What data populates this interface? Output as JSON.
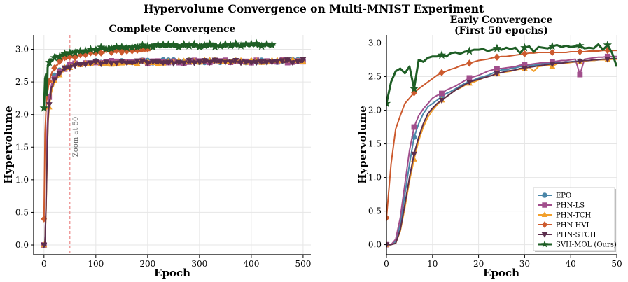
{
  "suptitle": "Hypervolume Convergence on Multi-MNIST Experiment",
  "colors": {
    "EPO": "#4a86a8",
    "PHN-LS": "#a14e8c",
    "PHN-TCH": "#f2a02d",
    "PHN-HVI": "#cc5a2e",
    "PHN-STCH": "#5c2f4e",
    "SVH-MOL (Ours)": "#1e5e25"
  },
  "markers": {
    "EPO": "circle",
    "PHN-LS": "square",
    "PHN-TCH": "triangle-up",
    "PHN-HVI": "diamond",
    "PHN-STCH": "triangle-down",
    "SVH-MOL (Ours)": "star"
  },
  "chart_data": [
    {
      "type": "line",
      "title": "Complete Convergence",
      "xlabel": "Epoch",
      "ylabel": "Hypervolume",
      "xlim": [
        -20,
        515
      ],
      "ylim": [
        -0.15,
        3.22
      ],
      "xticks": [
        0,
        100,
        200,
        300,
        400,
        500
      ],
      "yticks": [
        0.0,
        0.5,
        1.0,
        1.5,
        2.0,
        2.5,
        3.0
      ],
      "grid": true,
      "annotation": {
        "type": "vline",
        "x": 50,
        "label": "Zoom at 50",
        "color": "#e87070",
        "style": "dashed"
      },
      "series": [
        {
          "name": "EPO",
          "epochs": 500,
          "final": 2.82,
          "curve": [
            [
              0,
              0.0
            ],
            [
              2,
              0.05
            ],
            [
              4,
              0.6
            ],
            [
              6,
              1.6
            ],
            [
              8,
              2.05
            ],
            [
              10,
              2.25
            ],
            [
              14,
              2.45
            ],
            [
              20,
              2.58
            ],
            [
              30,
              2.66
            ],
            [
              40,
              2.72
            ],
            [
              60,
              2.77
            ],
            [
              100,
              2.8
            ],
            [
              200,
              2.81
            ],
            [
              300,
              2.82
            ],
            [
              500,
              2.82
            ]
          ]
        },
        {
          "name": "PHN-LS",
          "epochs": 500,
          "final": 2.81,
          "curve": [
            [
              0,
              0.0
            ],
            [
              2,
              0.05
            ],
            [
              4,
              0.7
            ],
            [
              6,
              1.75
            ],
            [
              8,
              2.1
            ],
            [
              10,
              2.25
            ],
            [
              14,
              2.45
            ],
            [
              20,
              2.56
            ],
            [
              30,
              2.65
            ],
            [
              40,
              2.72
            ],
            [
              60,
              2.77
            ],
            [
              100,
              2.8
            ],
            [
              300,
              2.81
            ],
            [
              500,
              2.81
            ]
          ]
        },
        {
          "name": "PHN-TCH",
          "epochs": 500,
          "final": 2.82,
          "curve": [
            [
              0,
              0.0
            ],
            [
              2,
              0.05
            ],
            [
              4,
              0.55
            ],
            [
              6,
              1.3
            ],
            [
              8,
              1.9
            ],
            [
              10,
              2.1
            ],
            [
              14,
              2.35
            ],
            [
              20,
              2.5
            ],
            [
              30,
              2.62
            ],
            [
              40,
              2.7
            ],
            [
              60,
              2.76
            ],
            [
              100,
              2.79
            ],
            [
              300,
              2.81
            ],
            [
              500,
              2.82
            ]
          ]
        },
        {
          "name": "PHN-HVI",
          "epochs": 205,
          "final": 2.99,
          "curve": [
            [
              0,
              0.4
            ],
            [
              2,
              1.7
            ],
            [
              4,
              2.1
            ],
            [
              6,
              2.3
            ],
            [
              10,
              2.5
            ],
            [
              14,
              2.62
            ],
            [
              20,
              2.72
            ],
            [
              30,
              2.8
            ],
            [
              40,
              2.86
            ],
            [
              50,
              2.88
            ],
            [
              80,
              2.94
            ],
            [
              120,
              2.97
            ],
            [
              205,
              2.99
            ]
          ]
        },
        {
          "name": "PHN-STCH",
          "epochs": 500,
          "final": 2.82,
          "curve": [
            [
              0,
              0.0
            ],
            [
              2,
              0.05
            ],
            [
              4,
              0.6
            ],
            [
              6,
              1.35
            ],
            [
              8,
              1.95
            ],
            [
              10,
              2.15
            ],
            [
              14,
              2.38
            ],
            [
              20,
              2.52
            ],
            [
              30,
              2.63
            ],
            [
              40,
              2.71
            ],
            [
              60,
              2.77
            ],
            [
              100,
              2.8
            ],
            [
              300,
              2.81
            ],
            [
              500,
              2.82
            ]
          ]
        },
        {
          "name": "SVH-MOL (Ours)",
          "epochs": 445,
          "final": 3.07,
          "curve": [
            [
              0,
              2.1
            ],
            [
              2,
              2.55
            ],
            [
              4,
              2.62
            ],
            [
              6,
              2.3
            ],
            [
              7,
              2.72
            ],
            [
              10,
              2.8
            ],
            [
              15,
              2.83
            ],
            [
              20,
              2.88
            ],
            [
              30,
              2.9
            ],
            [
              40,
              2.93
            ],
            [
              50,
              2.95
            ],
            [
              80,
              2.98
            ],
            [
              120,
              3.02
            ],
            [
              200,
              3.05
            ],
            [
              300,
              3.06
            ],
            [
              445,
              3.07
            ]
          ]
        }
      ]
    },
    {
      "type": "line",
      "title": "Early Convergence",
      "subtitle": "(First 50 epochs)",
      "xlabel": "Epoch",
      "ylabel": "Hypervolume",
      "xlim": [
        0,
        50
      ],
      "ylim": [
        -0.15,
        3.12
      ],
      "xticks": [
        0,
        10,
        20,
        30,
        40,
        50
      ],
      "yticks": [
        0.0,
        0.5,
        1.0,
        1.5,
        2.0,
        2.5,
        3.0
      ],
      "grid": true,
      "legend": "lower-right",
      "series": [
        {
          "name": "EPO",
          "x": [
            0,
            1,
            2,
            3,
            4,
            5,
            6,
            7,
            8,
            9,
            10,
            11,
            12,
            13,
            14,
            15,
            16,
            17,
            18,
            19,
            20,
            21,
            22,
            23,
            24,
            25,
            26,
            27,
            28,
            29,
            30,
            31,
            32,
            33,
            34,
            35,
            36,
            37,
            38,
            39,
            40,
            41,
            42,
            43,
            44,
            45,
            46,
            47,
            48,
            49,
            50
          ],
          "y": [
            0.0,
            0.0,
            0.05,
            0.3,
            0.75,
            1.2,
            1.6,
            1.8,
            1.95,
            2.05,
            2.1,
            2.15,
            2.2,
            2.25,
            2.28,
            2.32,
            2.36,
            2.4,
            2.42,
            2.45,
            2.48,
            2.5,
            2.52,
            2.55,
            2.58,
            2.6,
            2.6,
            2.62,
            2.63,
            2.65,
            2.65,
            2.67,
            2.67,
            2.68,
            2.69,
            2.7,
            2.7,
            2.71,
            2.71,
            2.72,
            2.72,
            2.73,
            2.73,
            2.74,
            2.74,
            2.74,
            2.75,
            2.75,
            2.76,
            2.76,
            2.77
          ]
        },
        {
          "name": "PHN-LS",
          "x": [
            0,
            1,
            2,
            3,
            4,
            5,
            6,
            7,
            8,
            9,
            10,
            11,
            12,
            13,
            14,
            15,
            16,
            17,
            18,
            19,
            20,
            21,
            22,
            23,
            24,
            25,
            26,
            27,
            28,
            29,
            30,
            31,
            32,
            33,
            34,
            35,
            36,
            37,
            38,
            39,
            40,
            41,
            42,
            43,
            44,
            45,
            46,
            47,
            48,
            49,
            50
          ],
          "y": [
            0.0,
            0.0,
            0.08,
            0.4,
            0.9,
            1.4,
            1.75,
            1.92,
            2.02,
            2.1,
            2.18,
            2.22,
            2.25,
            2.3,
            2.33,
            2.36,
            2.4,
            2.44,
            2.48,
            2.5,
            2.52,
            2.55,
            2.58,
            2.6,
            2.62,
            2.62,
            2.63,
            2.64,
            2.65,
            2.67,
            2.68,
            2.68,
            2.69,
            2.7,
            2.71,
            2.71,
            2.72,
            2.73,
            2.74,
            2.74,
            2.75,
            2.76,
            2.53,
            2.76,
            2.77,
            2.78,
            2.79,
            2.79,
            2.8,
            2.8,
            2.8
          ]
        },
        {
          "name": "PHN-TCH",
          "x": [
            0,
            1,
            2,
            3,
            4,
            5,
            6,
            7,
            8,
            9,
            10,
            11,
            12,
            13,
            14,
            15,
            16,
            17,
            18,
            19,
            20,
            21,
            22,
            23,
            24,
            25,
            26,
            27,
            28,
            29,
            30,
            31,
            32,
            33,
            34,
            35,
            36,
            37,
            38,
            39,
            40,
            41,
            42,
            43,
            44,
            45,
            46,
            47,
            48,
            49,
            50
          ],
          "y": [
            0.0,
            0.0,
            0.02,
            0.2,
            0.55,
            0.95,
            1.27,
            1.55,
            1.75,
            1.9,
            2.0,
            2.08,
            2.15,
            2.2,
            2.25,
            2.3,
            2.33,
            2.37,
            2.4,
            2.42,
            2.45,
            2.48,
            2.5,
            2.52,
            2.55,
            2.56,
            2.57,
            2.58,
            2.6,
            2.61,
            2.62,
            2.64,
            2.58,
            2.65,
            2.66,
            2.67,
            2.65,
            2.69,
            2.7,
            2.7,
            2.71,
            2.72,
            2.72,
            2.73,
            2.74,
            2.74,
            2.75,
            2.75,
            2.75,
            2.76,
            2.76
          ]
        },
        {
          "name": "PHN-HVI",
          "x": [
            0,
            1,
            2,
            3,
            4,
            5,
            6,
            7,
            8,
            9,
            10,
            11,
            12,
            13,
            14,
            15,
            16,
            17,
            18,
            19,
            20,
            21,
            22,
            23,
            24,
            25,
            26,
            27,
            28,
            29,
            30,
            31,
            32,
            33,
            34,
            35,
            36,
            37,
            38,
            39,
            40,
            41,
            42,
            43,
            44,
            45,
            46,
            47,
            48,
            49,
            50
          ],
          "y": [
            0.4,
            1.2,
            1.72,
            1.92,
            2.1,
            2.18,
            2.26,
            2.32,
            2.37,
            2.42,
            2.47,
            2.52,
            2.56,
            2.58,
            2.61,
            2.63,
            2.66,
            2.68,
            2.7,
            2.72,
            2.74,
            2.75,
            2.76,
            2.78,
            2.79,
            2.8,
            2.8,
            2.81,
            2.82,
            2.83,
            2.84,
            2.85,
            2.85,
            2.86,
            2.86,
            2.86,
            2.86,
            2.86,
            2.86,
            2.86,
            2.87,
            2.87,
            2.87,
            2.87,
            2.88,
            2.88,
            2.88,
            2.89,
            2.89,
            2.89,
            2.89
          ]
        },
        {
          "name": "PHN-STCH",
          "x": [
            0,
            1,
            2,
            3,
            4,
            5,
            6,
            7,
            8,
            9,
            10,
            11,
            12,
            13,
            14,
            15,
            16,
            17,
            18,
            19,
            20,
            21,
            22,
            23,
            24,
            25,
            26,
            27,
            28,
            29,
            30,
            31,
            32,
            33,
            34,
            35,
            36,
            37,
            38,
            39,
            40,
            41,
            42,
            43,
            44,
            45,
            46,
            47,
            48,
            49,
            50
          ],
          "y": [
            0.0,
            0.0,
            0.02,
            0.22,
            0.6,
            1.0,
            1.35,
            1.6,
            1.8,
            1.95,
            2.03,
            2.1,
            2.15,
            2.2,
            2.25,
            2.3,
            2.34,
            2.38,
            2.42,
            2.44,
            2.46,
            2.48,
            2.5,
            2.52,
            2.55,
            2.56,
            2.58,
            2.59,
            2.6,
            2.62,
            2.63,
            2.64,
            2.65,
            2.66,
            2.67,
            2.68,
            2.69,
            2.7,
            2.7,
            2.71,
            2.72,
            2.72,
            2.73,
            2.74,
            2.74,
            2.75,
            2.75,
            2.76,
            2.76,
            2.77,
            2.77
          ]
        },
        {
          "name": "SVH-MOL (Ours)",
          "x": [
            0,
            1,
            2,
            3,
            4,
            5,
            6,
            7,
            8,
            9,
            10,
            11,
            12,
            13,
            14,
            15,
            16,
            17,
            18,
            19,
            20,
            21,
            22,
            23,
            24,
            25,
            26,
            27,
            28,
            29,
            30,
            31,
            32,
            33,
            34,
            35,
            36,
            37,
            38,
            39,
            40,
            41,
            42,
            43,
            44,
            45,
            46,
            47,
            48,
            49,
            50
          ],
          "y": [
            2.1,
            2.42,
            2.58,
            2.62,
            2.55,
            2.65,
            2.32,
            2.75,
            2.72,
            2.78,
            2.8,
            2.8,
            2.82,
            2.8,
            2.85,
            2.86,
            2.84,
            2.87,
            2.88,
            2.9,
            2.9,
            2.91,
            2.88,
            2.9,
            2.92,
            2.9,
            2.93,
            2.91,
            2.93,
            2.85,
            2.93,
            2.95,
            2.87,
            2.94,
            2.93,
            2.92,
            2.95,
            2.97,
            2.94,
            2.96,
            2.94,
            2.95,
            2.96,
            2.92,
            2.93,
            2.92,
            2.98,
            2.9,
            2.97,
            2.85,
            2.65
          ]
        }
      ]
    }
  ]
}
